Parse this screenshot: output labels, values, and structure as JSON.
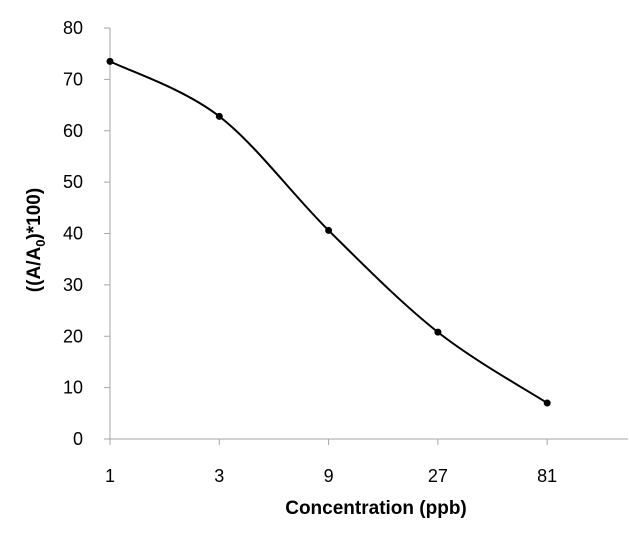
{
  "chart_data": {
    "type": "line",
    "xlabel": "Concentration (ppb)",
    "ylabel_prefix": "((A/A",
    "ylabel_subscript": "0",
    "ylabel_suffix": ")*100)",
    "x_tick_labels": [
      "1",
      "3",
      "9",
      "27",
      "81"
    ],
    "x_scale": "log3",
    "y_ticks": [
      0,
      10,
      20,
      30,
      40,
      50,
      60,
      70,
      80
    ],
    "ylim": [
      0,
      80
    ],
    "grid": false,
    "legend": "none",
    "smooth": true,
    "series": [
      {
        "x": [
          1,
          3,
          9,
          27,
          81
        ],
        "values": [
          73.5,
          62.8,
          40.6,
          20.8,
          7.0
        ]
      }
    ],
    "colors": {
      "line": "#000000",
      "axis": "#a6a6a6",
      "text": "#000000"
    }
  }
}
